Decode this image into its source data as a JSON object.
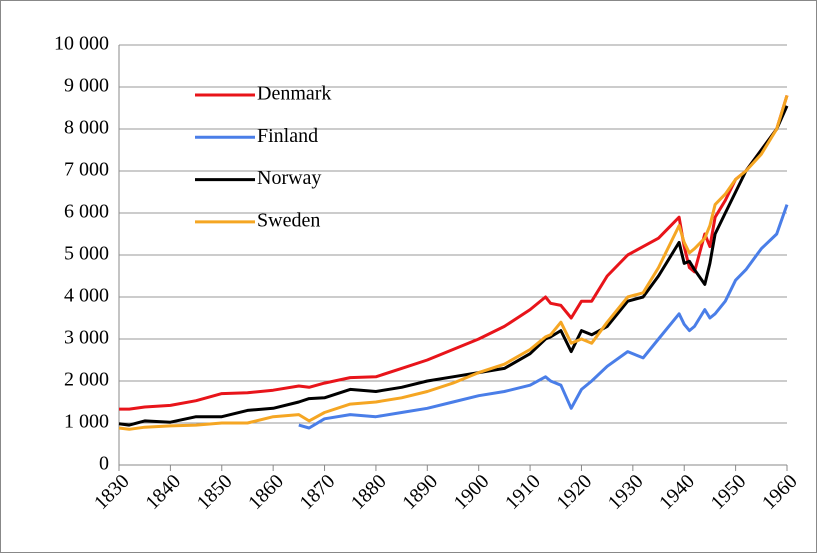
{
  "chart_data": {
    "type": "line",
    "x": [
      1830,
      1832,
      1835,
      1840,
      1845,
      1850,
      1855,
      1860,
      1865,
      1867,
      1870,
      1875,
      1880,
      1885,
      1890,
      1895,
      1900,
      1905,
      1910,
      1913,
      1914,
      1916,
      1918,
      1920,
      1922,
      1925,
      1929,
      1932,
      1935,
      1939,
      1940,
      1941,
      1942,
      1944,
      1945,
      1946,
      1948,
      1950,
      1952,
      1955,
      1958,
      1960
    ],
    "series": [
      {
        "name": "Denmark",
        "color": "#e8141a",
        "values": [
          1330,
          1330,
          1380,
          1420,
          1530,
          1700,
          1720,
          1780,
          1880,
          1850,
          1950,
          2080,
          2100,
          2300,
          2500,
          2750,
          3000,
          3300,
          3700,
          4000,
          3850,
          3800,
          3500,
          3900,
          3900,
          4500,
          5000,
          5200,
          5400,
          5900,
          5200,
          4700,
          4600,
          5500,
          5200,
          5900,
          6300,
          6800,
          7000,
          7500,
          8000,
          8800
        ]
      },
      {
        "name": "Finland",
        "color": "#4a7ee8",
        "values": [
          null,
          null,
          null,
          null,
          null,
          null,
          null,
          null,
          950,
          880,
          1100,
          1200,
          1150,
          1250,
          1350,
          1500,
          1650,
          1750,
          1900,
          2100,
          2000,
          1900,
          1350,
          1800,
          2000,
          2350,
          2700,
          2550,
          3000,
          3600,
          3350,
          3200,
          3300,
          3700,
          3500,
          3600,
          3900,
          4400,
          4650,
          5150,
          5500,
          6200
        ]
      },
      {
        "name": "Norway",
        "color": "#000000",
        "values": [
          980,
          950,
          1050,
          1020,
          1150,
          1150,
          1300,
          1350,
          1500,
          1580,
          1600,
          1800,
          1750,
          1850,
          2000,
          2100,
          2200,
          2300,
          2650,
          3000,
          3050,
          3200,
          2700,
          3200,
          3100,
          3300,
          3900,
          4000,
          4500,
          5300,
          4800,
          4850,
          4650,
          4300,
          4800,
          5500,
          6000,
          6500,
          7000,
          7500,
          8000,
          8550
        ]
      },
      {
        "name": "Sweden",
        "color": "#f5a623",
        "values": [
          880,
          850,
          900,
          930,
          950,
          1000,
          1000,
          1150,
          1200,
          1050,
          1250,
          1450,
          1500,
          1600,
          1750,
          1950,
          2200,
          2400,
          2750,
          3050,
          3100,
          3400,
          2900,
          3000,
          2900,
          3400,
          4000,
          4100,
          4700,
          5700,
          5300,
          5050,
          5150,
          5400,
          5700,
          6200,
          6450,
          6800,
          7000,
          7400,
          8000,
          8800
        ]
      }
    ],
    "xlim": [
      1830,
      1960
    ],
    "xticks": [
      1830,
      1840,
      1850,
      1860,
      1870,
      1880,
      1890,
      1900,
      1910,
      1920,
      1930,
      1940,
      1950,
      1960
    ],
    "ylim": [
      0,
      10000
    ],
    "yticks": [
      0,
      {
        "value": 1000,
        "label": "1 000"
      },
      {
        "value": 2000,
        "label": "2 000"
      },
      {
        "value": 3000,
        "label": "3 000"
      },
      {
        "value": 4000,
        "label": "4 000"
      },
      {
        "value": 5000,
        "label": "5 000"
      },
      {
        "value": 6000,
        "label": "6 000"
      },
      {
        "value": 7000,
        "label": "7 000"
      },
      {
        "value": 8000,
        "label": "8 000"
      },
      {
        "value": 9000,
        "label": "9 000"
      },
      {
        "value": 10000,
        "label": "10 000"
      }
    ],
    "grid": true
  }
}
